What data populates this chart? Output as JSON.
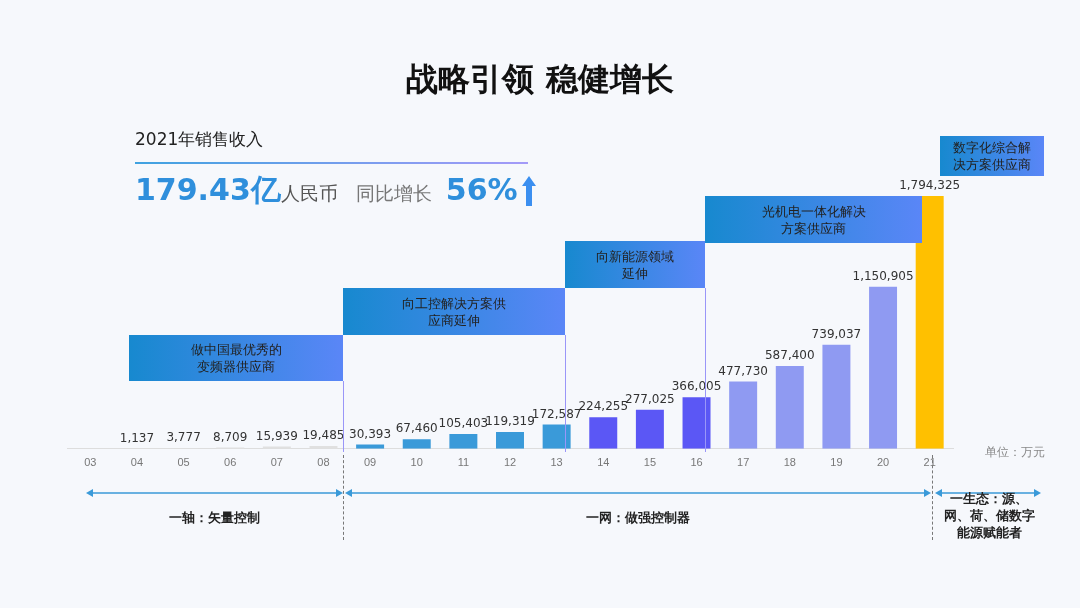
{
  "chart_data": {
    "type": "bar",
    "title": "战略引领  稳健增长",
    "subtitle": "2021年销售收入",
    "categories": [
      "03",
      "04",
      "05",
      "06",
      "07",
      "08",
      "09",
      "10",
      "11",
      "12",
      "13",
      "14",
      "15",
      "16",
      "17",
      "18",
      "19",
      "20",
      "21"
    ],
    "values": [
      null,
      1137,
      3777,
      8709,
      15939,
      19485,
      30393,
      67460,
      105403,
      119319,
      172587,
      224255,
      277025,
      366005,
      477730,
      587400,
      739037,
      1150905,
      1794325
    ],
    "value_labels": [
      null,
      "1,137",
      "3,777",
      "8,709",
      "15,939",
      "19,485",
      "30,393",
      "67,460",
      "105,403",
      "119,319",
      "172,587",
      "224,255",
      "277,025",
      "366,005",
      "477,730",
      "587,400",
      "739,037",
      "1,150,905",
      "1,794,325"
    ],
    "colors": [
      "#e0e0e0",
      "#e0e0e0",
      "#e0e0e0",
      "#e0e0e0",
      "#e0e0e0",
      "#e0e0e0",
      "#3a9ad9",
      "#3a9ad9",
      "#3a9ad9",
      "#3a9ad9",
      "#3a9ad9",
      "#5b57f5",
      "#5b57f5",
      "#5b57f5",
      "#8f9af2",
      "#8f9af2",
      "#8f9af2",
      "#8f9af2",
      "#ffc000"
    ],
    "annotations": [
      "179.43亿",
      "人民币",
      "同比增长",
      "56%",
      "做中国最优秀的变频器供应商",
      "向工控解决方案供应商延伸",
      "向新能源领域延伸",
      "光机电一体化解决方案供应商",
      "数字化综合解决方案供应商",
      "单位：万元",
      "一轴：矢量控制",
      "一网：做强控制器",
      "一生态：源、网、荷、储数字能源赋能者"
    ],
    "grid": false
  }
}
